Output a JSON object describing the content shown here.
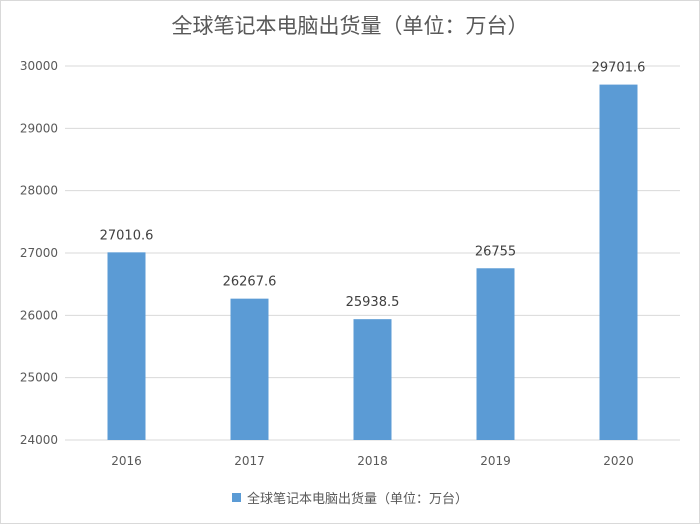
{
  "chart_data": {
    "type": "bar",
    "title": "全球笔记本电脑出货量（单位：万台）",
    "categories": [
      "2016",
      "2017",
      "2018",
      "2019",
      "2020"
    ],
    "series": [
      {
        "name": "全球笔记本电脑出货量（单位：万台）",
        "values": [
          27010.6,
          26267.6,
          25938.5,
          26755,
          29701.6
        ],
        "value_labels": [
          "27010.6",
          "26267.6",
          "25938.5",
          "26755",
          "29701.6"
        ],
        "color": "#5b9bd5"
      }
    ],
    "ylim": [
      24000,
      30000
    ],
    "yticks": [
      "24000",
      "25000",
      "26000",
      "27000",
      "28000",
      "29000",
      "30000"
    ],
    "grid": true,
    "legend": "bottom"
  }
}
